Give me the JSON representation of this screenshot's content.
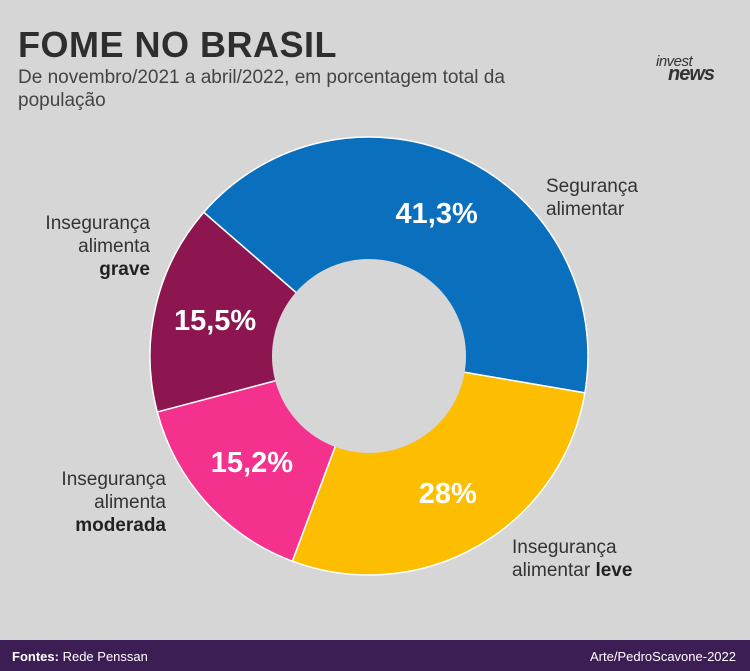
{
  "header": {
    "title": "FOME NO BRASIL",
    "subtitle": "De novembro/2021 a abril/2022, em porcentagem total da população",
    "logo_line1": "invest",
    "logo_line2": "news"
  },
  "chart_data": {
    "type": "pie",
    "variant": "donut",
    "slices": [
      {
        "id": "seguranca",
        "value": 41.3,
        "value_label": "41,3%",
        "color": "#0a6fbd",
        "label_line1": "Segurança",
        "label_line2": "alimentar",
        "label_emph": ""
      },
      {
        "id": "leve",
        "value": 28,
        "value_label": "28%",
        "color": "#fdbd00",
        "label_line1": "Insegurança",
        "label_line2": "alimentar",
        "label_emph": "leve"
      },
      {
        "id": "moderada",
        "value": 15.2,
        "value_label": "15,2%",
        "color": "#f5318e",
        "label_line1": "Insegurança",
        "label_line2": "alimenta",
        "label_emph": "moderada"
      },
      {
        "id": "grave",
        "value": 15.5,
        "value_label": "15,5%",
        "color": "#8d1650",
        "label_line1": "Insegurança",
        "label_line2": "alimenta",
        "label_emph": "grave"
      }
    ]
  },
  "footer": {
    "source_prefix": "Fontes:",
    "source_text": "Rede Penssan",
    "credit": "Arte/PedroScavone-2022"
  }
}
